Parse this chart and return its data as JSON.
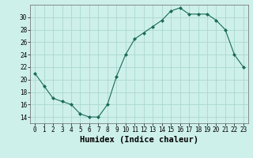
{
  "x": [
    0,
    1,
    2,
    3,
    4,
    5,
    6,
    7,
    8,
    9,
    10,
    11,
    12,
    13,
    14,
    15,
    16,
    17,
    18,
    19,
    20,
    21,
    22,
    23
  ],
  "y": [
    21,
    19,
    17,
    16.5,
    16,
    14.5,
    14,
    14,
    16,
    20.5,
    24,
    26.5,
    27.5,
    28.5,
    29.5,
    31,
    31.5,
    30.5,
    30.5,
    30.5,
    29.5,
    28,
    24,
    22
  ],
  "line_color": "#1a6b5a",
  "marker": "D",
  "marker_size": 2.0,
  "bg_color": "#cef0ea",
  "grid_color": "#aad8d0",
  "xlabel": "Humidex (Indice chaleur)",
  "xlim": [
    -0.5,
    23.5
  ],
  "ylim": [
    13,
    32
  ],
  "yticks": [
    14,
    16,
    18,
    20,
    22,
    24,
    26,
    28,
    30
  ],
  "xticks": [
    0,
    1,
    2,
    3,
    4,
    5,
    6,
    7,
    8,
    9,
    10,
    11,
    12,
    13,
    14,
    15,
    16,
    17,
    18,
    19,
    20,
    21,
    22,
    23
  ],
  "tick_fontsize": 5.5,
  "xlabel_fontsize": 7.5
}
